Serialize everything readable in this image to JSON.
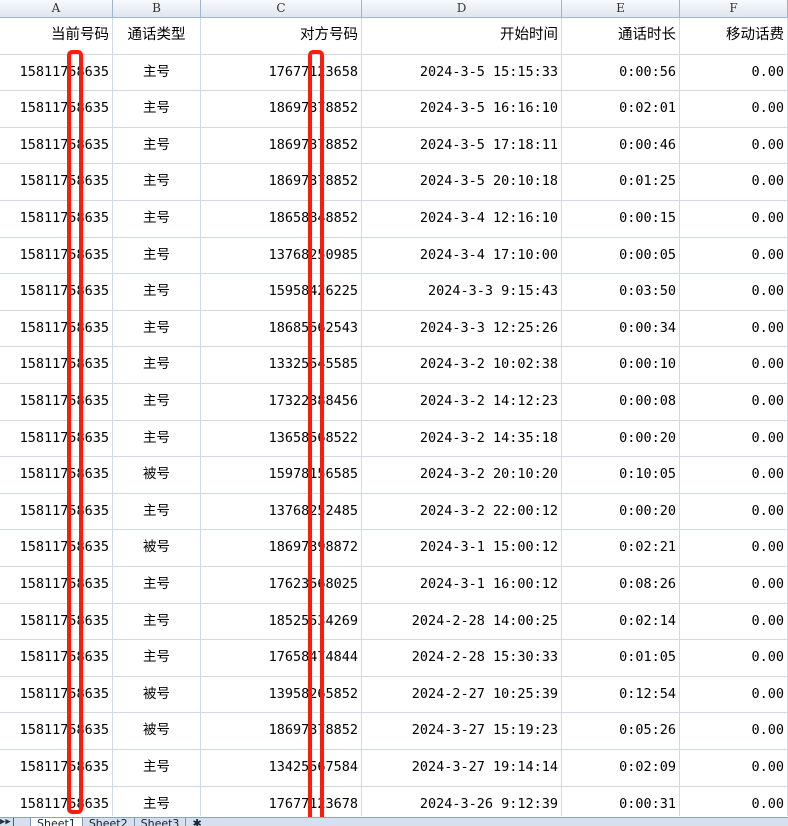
{
  "columns": [
    "A",
    "B",
    "C",
    "D",
    "E",
    "F"
  ],
  "headers": [
    "当前号码",
    "通话类型",
    "对方号码",
    "开始时间",
    "通话时长",
    "移动话费"
  ],
  "rows": [
    [
      "15811758635",
      "主号",
      "17677123658",
      "2024-3-5 15:15:33",
      "0:00:56",
      "0.00"
    ],
    [
      "15811758635",
      "主号",
      "18697378852",
      "2024-3-5 16:16:10",
      "0:02:01",
      "0.00"
    ],
    [
      "15811758635",
      "主号",
      "18697378852",
      "2024-3-5 17:18:11",
      "0:00:46",
      "0.00"
    ],
    [
      "15811758635",
      "主号",
      "18697378852",
      "2024-3-5 20:10:18",
      "0:01:25",
      "0.00"
    ],
    [
      "15811758635",
      "主号",
      "18658848852",
      "2024-3-4 12:16:10",
      "0:00:15",
      "0.00"
    ],
    [
      "15811758635",
      "主号",
      "13768250985",
      "2024-3-4 17:10:00",
      "0:00:05",
      "0.00"
    ],
    [
      "15811758635",
      "主号",
      "15958426225",
      "2024-3-3 9:15:43",
      "0:03:50",
      "0.00"
    ],
    [
      "15811758635",
      "主号",
      "18685562543",
      "2024-3-3 12:25:26",
      "0:00:34",
      "0.00"
    ],
    [
      "15811758635",
      "主号",
      "13325545585",
      "2024-3-2 10:02:38",
      "0:00:10",
      "0.00"
    ],
    [
      "15811758635",
      "主号",
      "17322388456",
      "2024-3-2 14:12:23",
      "0:00:08",
      "0.00"
    ],
    [
      "15811758635",
      "主号",
      "13658568522",
      "2024-3-2 14:35:18",
      "0:00:20",
      "0.00"
    ],
    [
      "15811758635",
      "被号",
      "15978156585",
      "2024-3-2 20:10:20",
      "0:10:05",
      "0.00"
    ],
    [
      "15811758635",
      "主号",
      "13768252485",
      "2024-3-2 22:00:12",
      "0:00:20",
      "0.00"
    ],
    [
      "15811758635",
      "被号",
      "18697398872",
      "2024-3-1 15:00:12",
      "0:02:21",
      "0.00"
    ],
    [
      "15811758635",
      "主号",
      "17623568025",
      "2024-3-1 16:00:12",
      "0:08:26",
      "0.00"
    ],
    [
      "15811758635",
      "主号",
      "18525534269",
      "2024-2-28 14:00:25",
      "0:02:14",
      "0.00"
    ],
    [
      "15811758635",
      "主号",
      "17658474844",
      "2024-2-28 15:30:33",
      "0:01:05",
      "0.00"
    ],
    [
      "15811758635",
      "被号",
      "13958265852",
      "2024-2-27 10:25:39",
      "0:12:54",
      "0.00"
    ],
    [
      "15811758635",
      "被号",
      "18697378852",
      "2024-3-27 15:19:23",
      "0:05:26",
      "0.00"
    ],
    [
      "15811758635",
      "主号",
      "13425567584",
      "2024-3-27 19:14:14",
      "0:02:09",
      "0.00"
    ],
    [
      "15811758635",
      "主号",
      "17677123678",
      "2024-3-26 9:12:39",
      "0:00:31",
      "0.00"
    ]
  ],
  "sheet_tabs": [
    "Sheet1",
    "Sheet2",
    "Sheet3"
  ],
  "active_tab": "Sheet1",
  "colors": {
    "redaction": "#ff1a0a",
    "grid": "#d0d7e5",
    "header_bg": "#dfe6f0"
  }
}
